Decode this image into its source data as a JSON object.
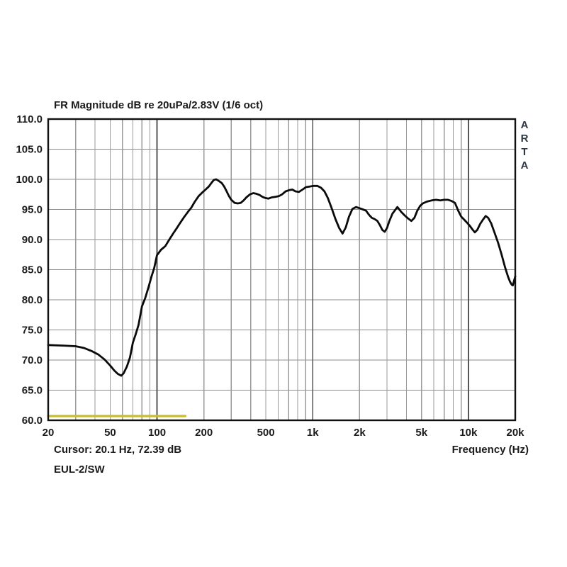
{
  "title": "FR Magnitude dB re 20uPa/2.83V (1/6 oct)",
  "watermark": "ARTA",
  "footer": {
    "cursor_readout": "Cursor: 20.1 Hz, 72.39 dB",
    "axis_title": "Frequency (Hz)",
    "device_label": "EUL-2/SW"
  },
  "colors": {
    "background": "#ffffff",
    "text": "#1b1b1b",
    "watermark_text": "#2e3742",
    "plot_border": "#111111",
    "grid_minor": "#9a9a9a",
    "grid_major": "#565656",
    "grid_horizontal": "#8c8c8c",
    "curve": "#0b0b0b",
    "marker_line": "#c8bd2e"
  },
  "chart_data": {
    "type": "line",
    "title": "FR Magnitude dB re 20uPa/2.83V (1/6 oct)",
    "xlabel": "Frequency (Hz)",
    "ylabel": "dB re 20uPa/2.83V",
    "x_scale": "log",
    "xlim": [
      20,
      20000
    ],
    "ylim": [
      60,
      110
    ],
    "y_tick_step": 5,
    "y_tick_decimals": 1,
    "grid": "on",
    "legend": "none",
    "x_ticks": [
      {
        "v": 20,
        "label": "20"
      },
      {
        "v": 50,
        "label": "50"
      },
      {
        "v": 100,
        "label": "100"
      },
      {
        "v": 200,
        "label": "200"
      },
      {
        "v": 500,
        "label": "500"
      },
      {
        "v": 1000,
        "label": "1k"
      },
      {
        "v": 2000,
        "label": "2k"
      },
      {
        "v": 5000,
        "label": "5k"
      },
      {
        "v": 10000,
        "label": "10k"
      },
      {
        "v": 20000,
        "label": "20k"
      }
    ],
    "grid_x_minor": [
      30,
      40,
      50,
      60,
      70,
      80,
      90,
      200,
      300,
      400,
      500,
      600,
      700,
      800,
      900,
      2000,
      3000,
      4000,
      5000,
      6000,
      7000,
      8000,
      9000
    ],
    "grid_x_major": [
      100,
      1000,
      10000
    ],
    "series": [
      {
        "name": "marker-line",
        "color": "#c8bd2e",
        "width": 3.2,
        "points": [
          [
            20,
            60.7
          ],
          [
            152,
            60.7
          ]
        ]
      },
      {
        "name": "fr-curve",
        "color": "#0b0b0b",
        "width": 2.8,
        "points": [
          [
            20,
            72.5
          ],
          [
            25,
            72.4
          ],
          [
            30,
            72.3
          ],
          [
            34,
            72.0
          ],
          [
            38,
            71.5
          ],
          [
            42,
            70.9
          ],
          [
            46,
            70.1
          ],
          [
            50,
            69.1
          ],
          [
            53,
            68.3
          ],
          [
            56,
            67.7
          ],
          [
            59,
            67.4
          ],
          [
            61,
            67.8
          ],
          [
            64,
            68.9
          ],
          [
            67,
            70.4
          ],
          [
            70,
            72.9
          ],
          [
            73,
            74.3
          ],
          [
            76,
            75.8
          ],
          [
            80,
            78.9
          ],
          [
            84,
            80.3
          ],
          [
            88,
            82.0
          ],
          [
            92,
            83.8
          ],
          [
            96,
            85.3
          ],
          [
            100,
            87.4
          ],
          [
            106,
            88.3
          ],
          [
            113,
            88.9
          ],
          [
            120,
            90.0
          ],
          [
            127,
            91.0
          ],
          [
            134,
            91.9
          ],
          [
            142,
            92.9
          ],
          [
            150,
            93.8
          ],
          [
            158,
            94.6
          ],
          [
            166,
            95.3
          ],
          [
            175,
            96.3
          ],
          [
            185,
            97.2
          ],
          [
            195,
            97.8
          ],
          [
            205,
            98.3
          ],
          [
            215,
            98.8
          ],
          [
            225,
            99.5
          ],
          [
            232,
            99.9
          ],
          [
            240,
            100.0
          ],
          [
            250,
            99.7
          ],
          [
            260,
            99.4
          ],
          [
            270,
            98.8
          ],
          [
            280,
            98.0
          ],
          [
            290,
            97.2
          ],
          [
            300,
            96.6
          ],
          [
            315,
            96.1
          ],
          [
            330,
            96.0
          ],
          [
            345,
            96.1
          ],
          [
            360,
            96.5
          ],
          [
            375,
            97.0
          ],
          [
            395,
            97.5
          ],
          [
            415,
            97.7
          ],
          [
            435,
            97.6
          ],
          [
            455,
            97.4
          ],
          [
            475,
            97.1
          ],
          [
            495,
            96.9
          ],
          [
            520,
            96.8
          ],
          [
            545,
            97.0
          ],
          [
            575,
            97.1
          ],
          [
            605,
            97.2
          ],
          [
            635,
            97.5
          ],
          [
            670,
            98.0
          ],
          [
            705,
            98.2
          ],
          [
            740,
            98.3
          ],
          [
            775,
            98.0
          ],
          [
            815,
            97.9
          ],
          [
            860,
            98.3
          ],
          [
            905,
            98.7
          ],
          [
            955,
            98.8
          ],
          [
            1010,
            98.9
          ],
          [
            1070,
            98.9
          ],
          [
            1130,
            98.6
          ],
          [
            1190,
            98.0
          ],
          [
            1250,
            96.9
          ],
          [
            1320,
            95.3
          ],
          [
            1400,
            93.4
          ],
          [
            1480,
            91.9
          ],
          [
            1555,
            91.0
          ],
          [
            1630,
            92.0
          ],
          [
            1710,
            93.8
          ],
          [
            1800,
            95.1
          ],
          [
            1900,
            95.4
          ],
          [
            2000,
            95.2
          ],
          [
            2100,
            95.0
          ],
          [
            2200,
            94.8
          ],
          [
            2300,
            94.1
          ],
          [
            2400,
            93.6
          ],
          [
            2500,
            93.4
          ],
          [
            2600,
            93.1
          ],
          [
            2700,
            92.4
          ],
          [
            2800,
            91.6
          ],
          [
            2900,
            91.3
          ],
          [
            3000,
            91.9
          ],
          [
            3100,
            93.0
          ],
          [
            3250,
            94.3
          ],
          [
            3500,
            95.4
          ],
          [
            3700,
            94.6
          ],
          [
            3900,
            94.0
          ],
          [
            4100,
            93.5
          ],
          [
            4300,
            93.1
          ],
          [
            4500,
            93.6
          ],
          [
            4700,
            94.8
          ],
          [
            4900,
            95.6
          ],
          [
            5100,
            96.0
          ],
          [
            5400,
            96.3
          ],
          [
            5800,
            96.5
          ],
          [
            6200,
            96.6
          ],
          [
            6600,
            96.5
          ],
          [
            7000,
            96.6
          ],
          [
            7400,
            96.6
          ],
          [
            7800,
            96.4
          ],
          [
            8200,
            96.1
          ],
          [
            8600,
            94.8
          ],
          [
            9000,
            93.8
          ],
          [
            9400,
            93.3
          ],
          [
            9800,
            92.8
          ],
          [
            10200,
            92.3
          ],
          [
            10600,
            91.7
          ],
          [
            11000,
            91.2
          ],
          [
            11400,
            91.6
          ],
          [
            11900,
            92.6
          ],
          [
            12400,
            93.3
          ],
          [
            12900,
            93.9
          ],
          [
            13400,
            93.6
          ],
          [
            14000,
            92.7
          ],
          [
            14700,
            91.2
          ],
          [
            15500,
            89.5
          ],
          [
            16300,
            87.6
          ],
          [
            17200,
            85.4
          ],
          [
            18000,
            83.8
          ],
          [
            18500,
            83.0
          ],
          [
            19000,
            82.5
          ],
          [
            19300,
            82.4
          ],
          [
            20000,
            83.9
          ]
        ]
      }
    ]
  }
}
